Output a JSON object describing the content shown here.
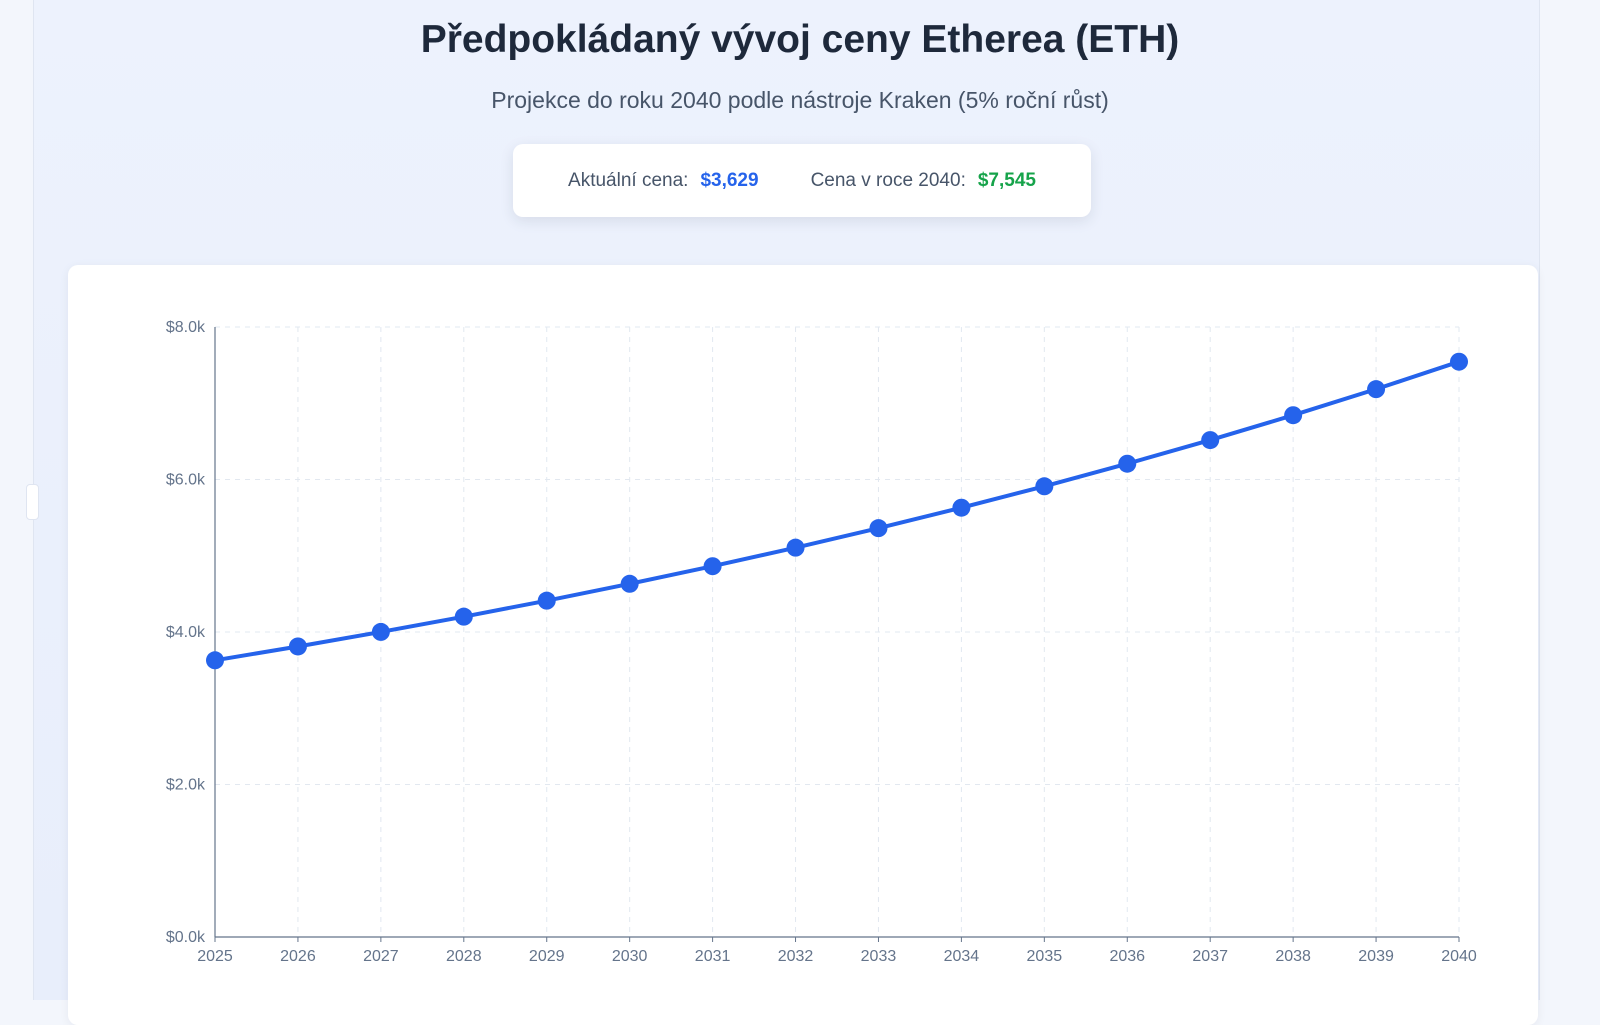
{
  "header": {
    "title": "Předpokládaný vývoj ceny Etherea (ETH)",
    "subtitle": "Projekce do roku 2040 podle nástroje Kraken (5% roční růst)"
  },
  "stats": {
    "current_label": "Aktuální cena:",
    "current_value": "$3,629",
    "future_label": "Cena v roce 2040:",
    "future_value": "$7,545"
  },
  "colors": {
    "line": "#2563eb",
    "current_value": "#2563eb",
    "future_value": "#16a34a",
    "grid": "#e2e8f0",
    "axis": "#64748b"
  },
  "chart_data": {
    "type": "line",
    "x": [
      "2025",
      "2026",
      "2027",
      "2028",
      "2029",
      "2030",
      "2031",
      "2032",
      "2033",
      "2034",
      "2035",
      "2036",
      "2037",
      "2038",
      "2039",
      "2040"
    ],
    "series": [
      {
        "values": [
          3629,
          3810,
          4001,
          4201,
          4411,
          4632,
          4863,
          5106,
          5362,
          5630,
          5911,
          6207,
          6517,
          6843,
          7185,
          7545
        ]
      }
    ],
    "ylim": [
      0,
      8000
    ],
    "yticks": [
      0,
      2000,
      4000,
      6000,
      8000
    ],
    "ytick_labels": [
      "$0.0k",
      "$2.0k",
      "$4.0k",
      "$6.0k",
      "$8.0k"
    ],
    "grid": true,
    "grid_style": "dashed",
    "legend": "none"
  }
}
